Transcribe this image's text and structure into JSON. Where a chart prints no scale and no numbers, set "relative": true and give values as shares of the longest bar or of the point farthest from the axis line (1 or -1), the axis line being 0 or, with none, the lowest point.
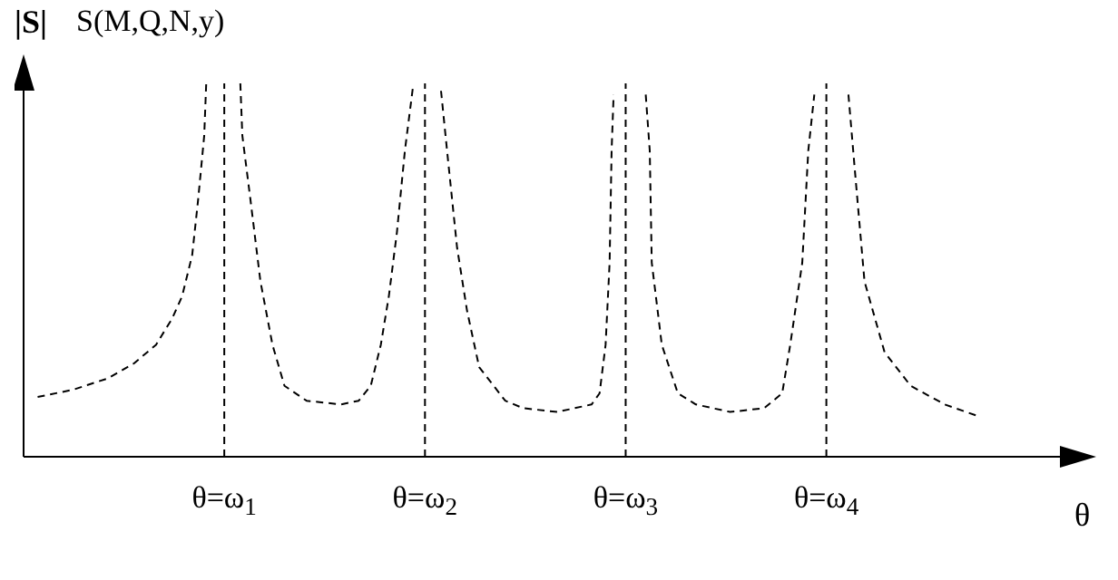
{
  "chart_data": {
    "type": "line",
    "title": "S(M,Q,N,y)",
    "ylabel": "|S|",
    "xlabel": "θ",
    "relative": true,
    "tick_labels": "x",
    "marker": "none",
    "line_style": "dashed",
    "xlim": [
      0,
      5.2
    ],
    "xticks": [
      {
        "value": 1,
        "label": "θ=ω$_{1}$"
      },
      {
        "value": 2,
        "label": "θ=ω$_{2}$"
      },
      {
        "value": 3,
        "label": "θ=ω$_{3}$"
      },
      {
        "value": 4,
        "label": "θ=ω$_{4}$"
      }
    ],
    "ref_lines": [
      {
        "axis": "x",
        "value": 1,
        "color": "#000000",
        "line_style": "dashed"
      },
      {
        "axis": "x",
        "value": 2,
        "color": "#000000",
        "line_style": "dashed"
      },
      {
        "axis": "x",
        "value": 3,
        "color": "#000000",
        "line_style": "dashed"
      },
      {
        "axis": "x",
        "value": 4,
        "color": "#000000",
        "line_style": "dashed"
      }
    ],
    "series": [
      {
        "color": "#000000",
        "x": [
          0.07,
          0.25,
          0.42,
          0.55,
          0.66,
          0.74,
          0.79,
          0.84,
          0.87,
          0.9,
          0.91,
          1,
          1.08,
          1.09,
          1.13,
          1.18,
          1.24,
          1.3,
          1.41,
          1.58,
          1.67,
          1.73,
          1.78,
          1.82,
          1.86,
          1.9,
          1.94,
          2,
          2.08,
          2.11,
          2.16,
          2.21,
          2.27,
          2.4,
          2.49,
          2.66,
          2.83,
          2.87,
          2.9,
          2.92,
          2.93,
          2.94,
          3,
          3.1,
          3.12,
          3.13,
          3.18,
          3.26,
          3.35,
          3.52,
          3.69,
          3.78,
          3.82,
          3.88,
          3.91,
          3.94,
          4,
          4.11,
          4.14,
          4.19,
          4.29,
          4.42,
          4.59,
          4.75
        ],
        "values": [
          0.16,
          0.18,
          0.21,
          0.25,
          0.3,
          0.37,
          0.43,
          0.54,
          0.69,
          0.86,
          1,
          null,
          1,
          0.86,
          0.69,
          0.47,
          0.3,
          0.19,
          0.15,
          0.14,
          0.15,
          0.19,
          0.3,
          0.43,
          0.6,
          0.82,
          0.99,
          null,
          0.98,
          0.82,
          0.56,
          0.39,
          0.24,
          0.15,
          0.13,
          0.12,
          0.14,
          0.17,
          0.3,
          0.52,
          0.82,
          0.97,
          null,
          0.97,
          0.82,
          0.52,
          0.3,
          0.17,
          0.14,
          0.12,
          0.13,
          0.17,
          0.3,
          0.52,
          0.82,
          0.97,
          null,
          0.97,
          0.78,
          0.47,
          0.28,
          0.19,
          0.14,
          0.11
        ]
      }
    ]
  }
}
